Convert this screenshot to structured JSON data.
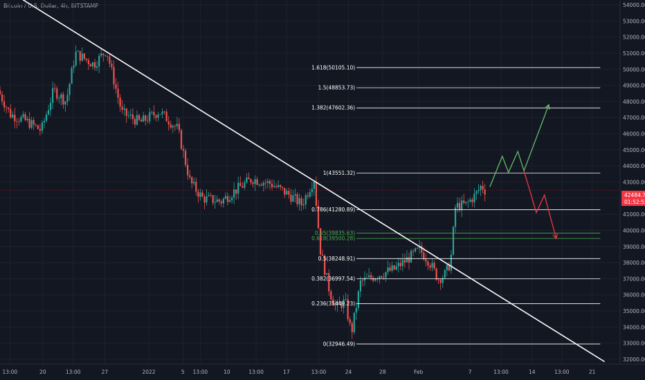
{
  "header": {
    "title": "Bitcoin / U.S. Dollar, 4h, BITSTAMP"
  },
  "price_tag": {
    "price": "42484.70",
    "timer": "01:52:52",
    "color": "#f23645"
  },
  "colors": {
    "up": "#26a69a",
    "down": "#ef5350",
    "fib": "#ffffff",
    "fib_green": "#4caf50",
    "proj_up": "#66bb6a",
    "proj_down": "#f23645",
    "trend": "#ffffff"
  },
  "chart_data": {
    "type": "candlestick",
    "y_axis": {
      "range": [
        31700,
        54300
      ],
      "ticks": [
        "32000.00",
        "33000.00",
        "34000.00",
        "35000.00",
        "36000.00",
        "37000.00",
        "38000.00",
        "39000.00",
        "40000.00",
        "41000.00",
        "42000.00",
        "43000.00",
        "44000.00",
        "45000.00",
        "46000.00",
        "47000.00",
        "48000.00",
        "49000.00",
        "50000.00",
        "51000.00",
        "52000.00",
        "53000.00",
        "54000.00"
      ]
    },
    "x_axis": {
      "ticks": [
        {
          "label": "13:00",
          "p": 0.016
        },
        {
          "label": "20",
          "p": 0.069
        },
        {
          "label": "13:00",
          "p": 0.118
        },
        {
          "label": "27",
          "p": 0.169
        },
        {
          "label": "2022",
          "p": 0.24
        },
        {
          "label": "5",
          "p": 0.295
        },
        {
          "label": "13:00",
          "p": 0.323
        },
        {
          "label": "10",
          "p": 0.366
        },
        {
          "label": "13:00",
          "p": 0.413
        },
        {
          "label": "17",
          "p": 0.462
        },
        {
          "label": "13:00",
          "p": 0.514
        },
        {
          "label": "24",
          "p": 0.562
        },
        {
          "label": "28",
          "p": 0.617
        },
        {
          "label": "Feb",
          "p": 0.675
        },
        {
          "label": "7",
          "p": 0.758
        },
        {
          "label": "13:00",
          "p": 0.808
        },
        {
          "label": "14",
          "p": 0.858
        },
        {
          "label": "13:00",
          "p": 0.906
        },
        {
          "label": "21",
          "p": 0.955
        }
      ]
    },
    "fib_levels": [
      {
        "label": "1.618(50105.10)",
        "price": 50105.1,
        "tone": "white"
      },
      {
        "label": "1.5(48853.73)",
        "price": 48853.73,
        "tone": "white"
      },
      {
        "label": "1.382(47602.36)",
        "price": 47602.36,
        "tone": "white"
      },
      {
        "label": "1(43551.32)",
        "price": 43551.32,
        "tone": "white"
      },
      {
        "label": "0.786(41280.89)",
        "price": 41280.89,
        "tone": "white"
      },
      {
        "label": "0.65(39835.63)",
        "price": 39835.63,
        "tone": "green"
      },
      {
        "label": "0.618(39500.28)",
        "price": 39500.28,
        "tone": "green"
      },
      {
        "label": "0.5(38248.91)",
        "price": 38248.91,
        "tone": "white"
      },
      {
        "label": "0.382(36997.54)",
        "price": 36997.54,
        "tone": "white"
      },
      {
        "label": "0.236(35449.23)",
        "price": 35449.23,
        "tone": "white"
      },
      {
        "label": "0(32946.49)",
        "price": 32946.49,
        "tone": "white"
      }
    ],
    "candle_path": [
      {
        "p": 0.0,
        "v": 48700
      },
      {
        "p": 0.02,
        "v": 47200
      },
      {
        "p": 0.045,
        "v": 46800
      },
      {
        "p": 0.07,
        "v": 46200
      },
      {
        "p": 0.09,
        "v": 48700
      },
      {
        "p": 0.11,
        "v": 48000
      },
      {
        "p": 0.125,
        "v": 51000
      },
      {
        "p": 0.155,
        "v": 50300
      },
      {
        "p": 0.175,
        "v": 51200
      },
      {
        "p": 0.2,
        "v": 47300
      },
      {
        "p": 0.23,
        "v": 46700
      },
      {
        "p": 0.26,
        "v": 47400
      },
      {
        "p": 0.29,
        "v": 46300
      },
      {
        "p": 0.31,
        "v": 43000
      },
      {
        "p": 0.33,
        "v": 42000
      },
      {
        "p": 0.36,
        "v": 41800
      },
      {
        "p": 0.38,
        "v": 42400
      },
      {
        "p": 0.41,
        "v": 43200
      },
      {
        "p": 0.44,
        "v": 42900
      },
      {
        "p": 0.47,
        "v": 42200
      },
      {
        "p": 0.49,
        "v": 41600
      },
      {
        "p": 0.51,
        "v": 43200
      },
      {
        "p": 0.52,
        "v": 38800
      },
      {
        "p": 0.535,
        "v": 36200
      },
      {
        "p": 0.545,
        "v": 35200
      },
      {
        "p": 0.56,
        "v": 35600
      },
      {
        "p": 0.57,
        "v": 33600
      },
      {
        "p": 0.585,
        "v": 36800
      },
      {
        "p": 0.61,
        "v": 37200
      },
      {
        "p": 0.64,
        "v": 37600
      },
      {
        "p": 0.66,
        "v": 38200
      },
      {
        "p": 0.68,
        "v": 38800
      },
      {
        "p": 0.695,
        "v": 38100
      },
      {
        "p": 0.71,
        "v": 37000
      },
      {
        "p": 0.72,
        "v": 37200
      },
      {
        "p": 0.73,
        "v": 38000
      },
      {
        "p": 0.738,
        "v": 41500
      },
      {
        "p": 0.755,
        "v": 41600
      },
      {
        "p": 0.77,
        "v": 42200
      },
      {
        "p": 0.78,
        "v": 42800
      },
      {
        "p": 0.785,
        "v": 42500
      }
    ],
    "trendline": {
      "start": {
        "p": 0.0,
        "v": 55200
      },
      "end": {
        "p": 0.975,
        "v": 31850
      }
    },
    "projection_up": [
      {
        "p": 0.79,
        "v": 42700
      },
      {
        "p": 0.81,
        "v": 44600
      },
      {
        "p": 0.82,
        "v": 43600
      },
      {
        "p": 0.835,
        "v": 44900
      },
      {
        "p": 0.845,
        "v": 43700
      },
      {
        "p": 0.885,
        "v": 47800
      }
    ],
    "projection_down": [
      {
        "p": 0.845,
        "v": 43700
      },
      {
        "p": 0.865,
        "v": 41100
      },
      {
        "p": 0.878,
        "v": 42200
      },
      {
        "p": 0.897,
        "v": 39500
      }
    ],
    "fib_x_start_p": 0.575
  }
}
